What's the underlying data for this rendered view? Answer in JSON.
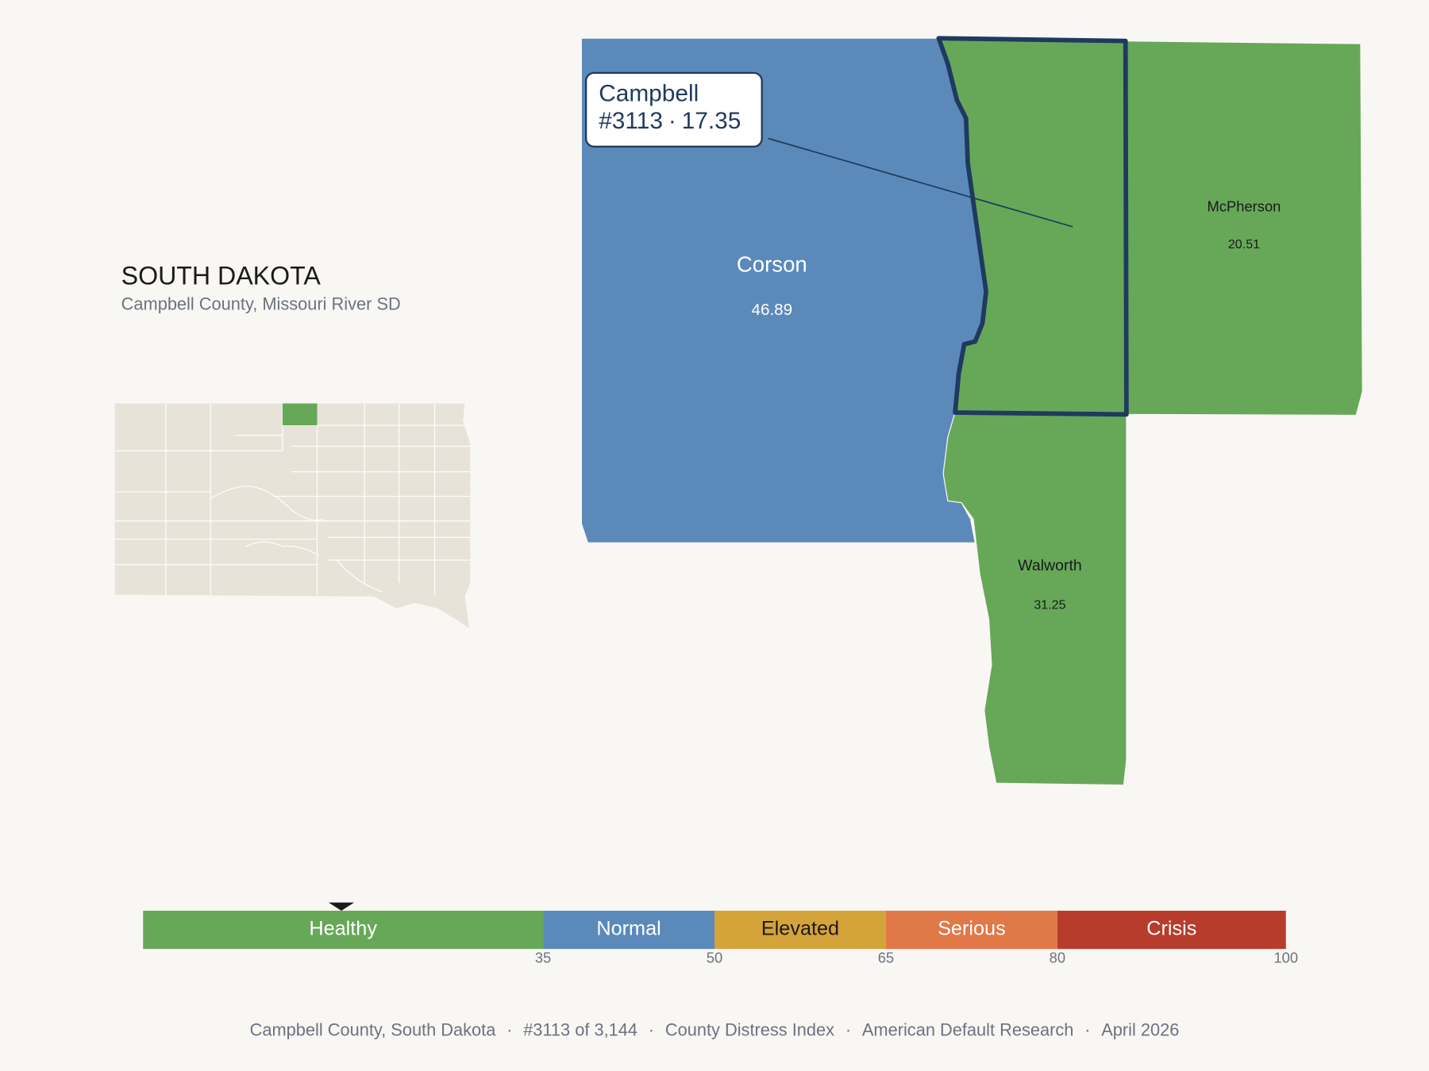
{
  "header": {
    "title": "SOUTH DAKOTA",
    "subtitle": "Campbell County, Missouri River SD"
  },
  "counties": [
    {
      "name": "Campbell",
      "score": 17.35,
      "color": "#66a858"
    },
    {
      "name": "Corson",
      "score": 46.89,
      "color": "#5b8aba"
    },
    {
      "name": "McPherson",
      "score": 20.51,
      "color": "#66a858"
    },
    {
      "name": "Walworth",
      "score": 31.25,
      "color": "#66a858"
    }
  ],
  "callout": {
    "rank": "#3113",
    "separator": "·"
  },
  "legend": {
    "xlim": [
      0,
      100
    ],
    "ticks": [
      35,
      50,
      65,
      80,
      100
    ],
    "bands": [
      {
        "label": "Healthy",
        "color": "#66a858",
        "text_color": "#ffffff"
      },
      {
        "label": "Normal",
        "color": "#5b8aba",
        "text_color": "#ffffff"
      },
      {
        "label": "Elevated",
        "color": "#d4a33a",
        "text_color": "#1a1a1a"
      },
      {
        "label": "Serious",
        "color": "#e07848",
        "text_color": "#ffffff"
      },
      {
        "label": "Crisis",
        "color": "#b83c2c",
        "text_color": "#ffffff"
      }
    ]
  },
  "footer": {
    "separator": "·",
    "items": [
      "Campbell County, South Dakota",
      "#3113 of 3,144",
      "County Distress Index",
      "American Default Research",
      "April 2026"
    ]
  }
}
